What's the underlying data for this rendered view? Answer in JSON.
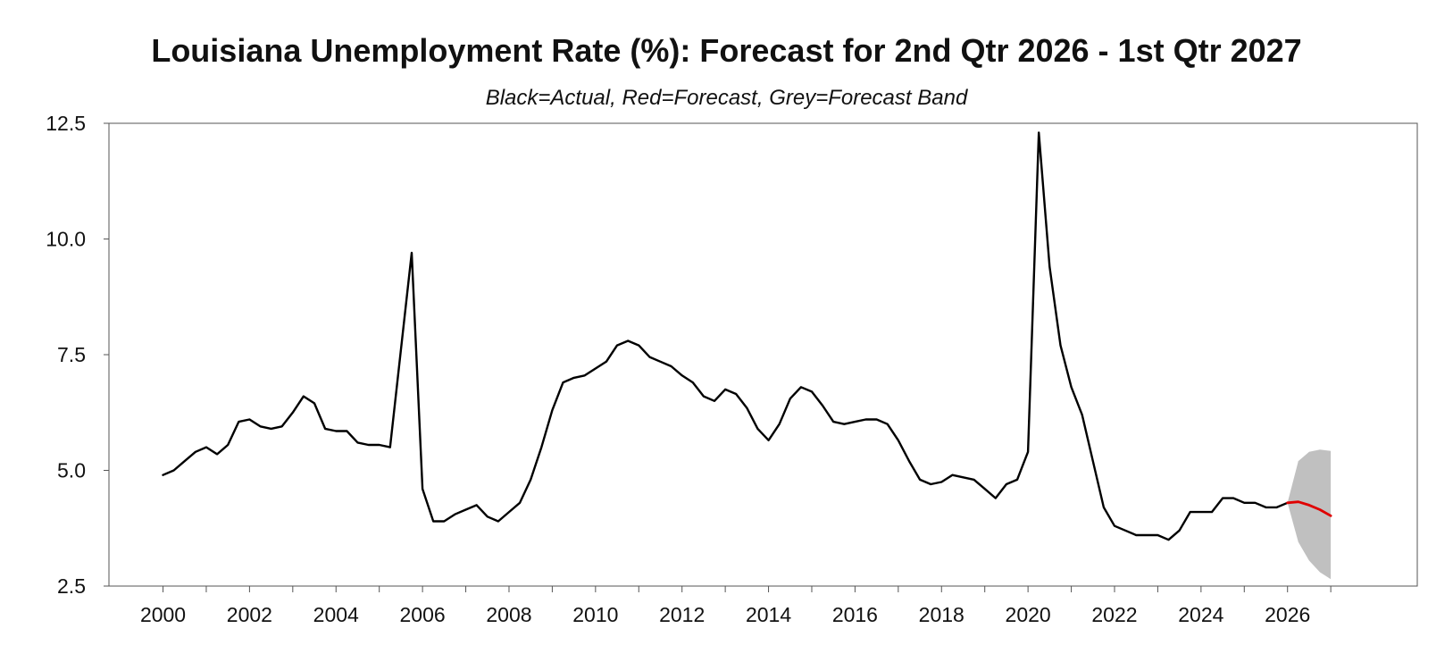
{
  "chart_data": {
    "type": "line",
    "title": "Louisiana Unemployment Rate (%): Forecast for 2nd Qtr 2026 - 1st Qtr 2027",
    "subtitle": "Black=Actual, Red=Forecast, Grey=Forecast Band",
    "xlabel": "",
    "ylabel": "",
    "ylim": [
      2.5,
      12.5
    ],
    "xlim": [
      1998.75,
      2029.0
    ],
    "yticks": [
      "2.5",
      "5.0",
      "7.5",
      "10.0",
      "12.5"
    ],
    "xticks": [
      "2000",
      "2002",
      "2004",
      "2006",
      "2008",
      "2010",
      "2012",
      "2014",
      "2016",
      "2018",
      "2020",
      "2022",
      "2024",
      "2026"
    ],
    "grid": false,
    "series": [
      {
        "color": "#000000",
        "x": [
          2000.0,
          2000.25,
          2000.5,
          2000.75,
          2001.0,
          2001.25,
          2001.5,
          2001.75,
          2002.0,
          2002.25,
          2002.5,
          2002.75,
          2003.0,
          2003.25,
          2003.5,
          2003.75,
          2004.0,
          2004.25,
          2004.5,
          2004.75,
          2005.0,
          2005.25,
          2005.5,
          2005.75,
          2006.0,
          2006.25,
          2006.5,
          2006.75,
          2007.0,
          2007.25,
          2007.5,
          2007.75,
          2008.0,
          2008.25,
          2008.5,
          2008.75,
          2009.0,
          2009.25,
          2009.5,
          2009.75,
          2010.0,
          2010.25,
          2010.5,
          2010.75,
          2011.0,
          2011.25,
          2011.5,
          2011.75,
          2012.0,
          2012.25,
          2012.5,
          2012.75,
          2013.0,
          2013.25,
          2013.5,
          2013.75,
          2014.0,
          2014.25,
          2014.5,
          2014.75,
          2015.0,
          2015.25,
          2015.5,
          2015.75,
          2016.0,
          2016.25,
          2016.5,
          2016.75,
          2017.0,
          2017.25,
          2017.5,
          2017.75,
          2018.0,
          2018.25,
          2018.5,
          2018.75,
          2019.0,
          2019.25,
          2019.5,
          2019.75,
          2020.0,
          2020.25,
          2020.5,
          2020.75,
          2021.0,
          2021.25,
          2021.5,
          2021.75,
          2022.0,
          2022.25,
          2022.5,
          2022.75,
          2023.0,
          2023.25,
          2023.5,
          2023.75,
          2024.0,
          2024.25,
          2024.5,
          2024.75,
          2025.0,
          2025.25,
          2025.5,
          2025.75,
          2026.0
        ],
        "values": [
          4.9,
          5.0,
          5.2,
          5.4,
          5.5,
          5.35,
          5.55,
          6.05,
          6.1,
          5.95,
          5.9,
          5.95,
          6.25,
          6.6,
          6.45,
          5.9,
          5.85,
          5.85,
          5.6,
          5.55,
          5.55,
          5.5,
          7.6,
          9.7,
          4.6,
          3.9,
          3.9,
          4.05,
          4.15,
          4.25,
          4.0,
          3.9,
          4.1,
          4.3,
          4.8,
          5.5,
          6.3,
          6.9,
          7.0,
          7.05,
          7.2,
          7.35,
          7.7,
          7.8,
          7.7,
          7.45,
          7.35,
          7.25,
          7.05,
          6.9,
          6.6,
          6.5,
          6.75,
          6.65,
          6.35,
          5.9,
          5.65,
          6.0,
          6.55,
          6.8,
          6.7,
          6.4,
          6.05,
          6.0,
          6.05,
          6.1,
          6.1,
          6.0,
          5.65,
          5.2,
          4.8,
          4.7,
          4.75,
          4.9,
          4.85,
          4.8,
          4.6,
          4.4,
          4.7,
          4.8,
          5.4,
          12.3,
          9.4,
          7.7,
          6.8,
          6.2,
          5.2,
          4.2,
          3.8,
          3.7,
          3.6,
          3.6,
          3.6,
          3.5,
          3.7,
          4.1,
          4.1,
          4.1,
          4.4,
          4.4,
          4.3,
          4.3,
          4.2,
          4.2,
          4.3
        ]
      },
      {
        "color": "#e00000",
        "x": [
          2026.0,
          2026.25,
          2026.5,
          2026.75,
          2027.0
        ],
        "values": [
          4.3,
          4.32,
          4.25,
          4.15,
          4.02
        ]
      }
    ],
    "band": {
      "color": "#c0c0c0",
      "x": [
        2026.0,
        2026.25,
        2026.5,
        2026.75,
        2027.0
      ],
      "upper": [
        4.3,
        5.2,
        5.4,
        5.45,
        5.42
      ],
      "lower": [
        4.3,
        3.45,
        3.05,
        2.8,
        2.65
      ]
    }
  }
}
